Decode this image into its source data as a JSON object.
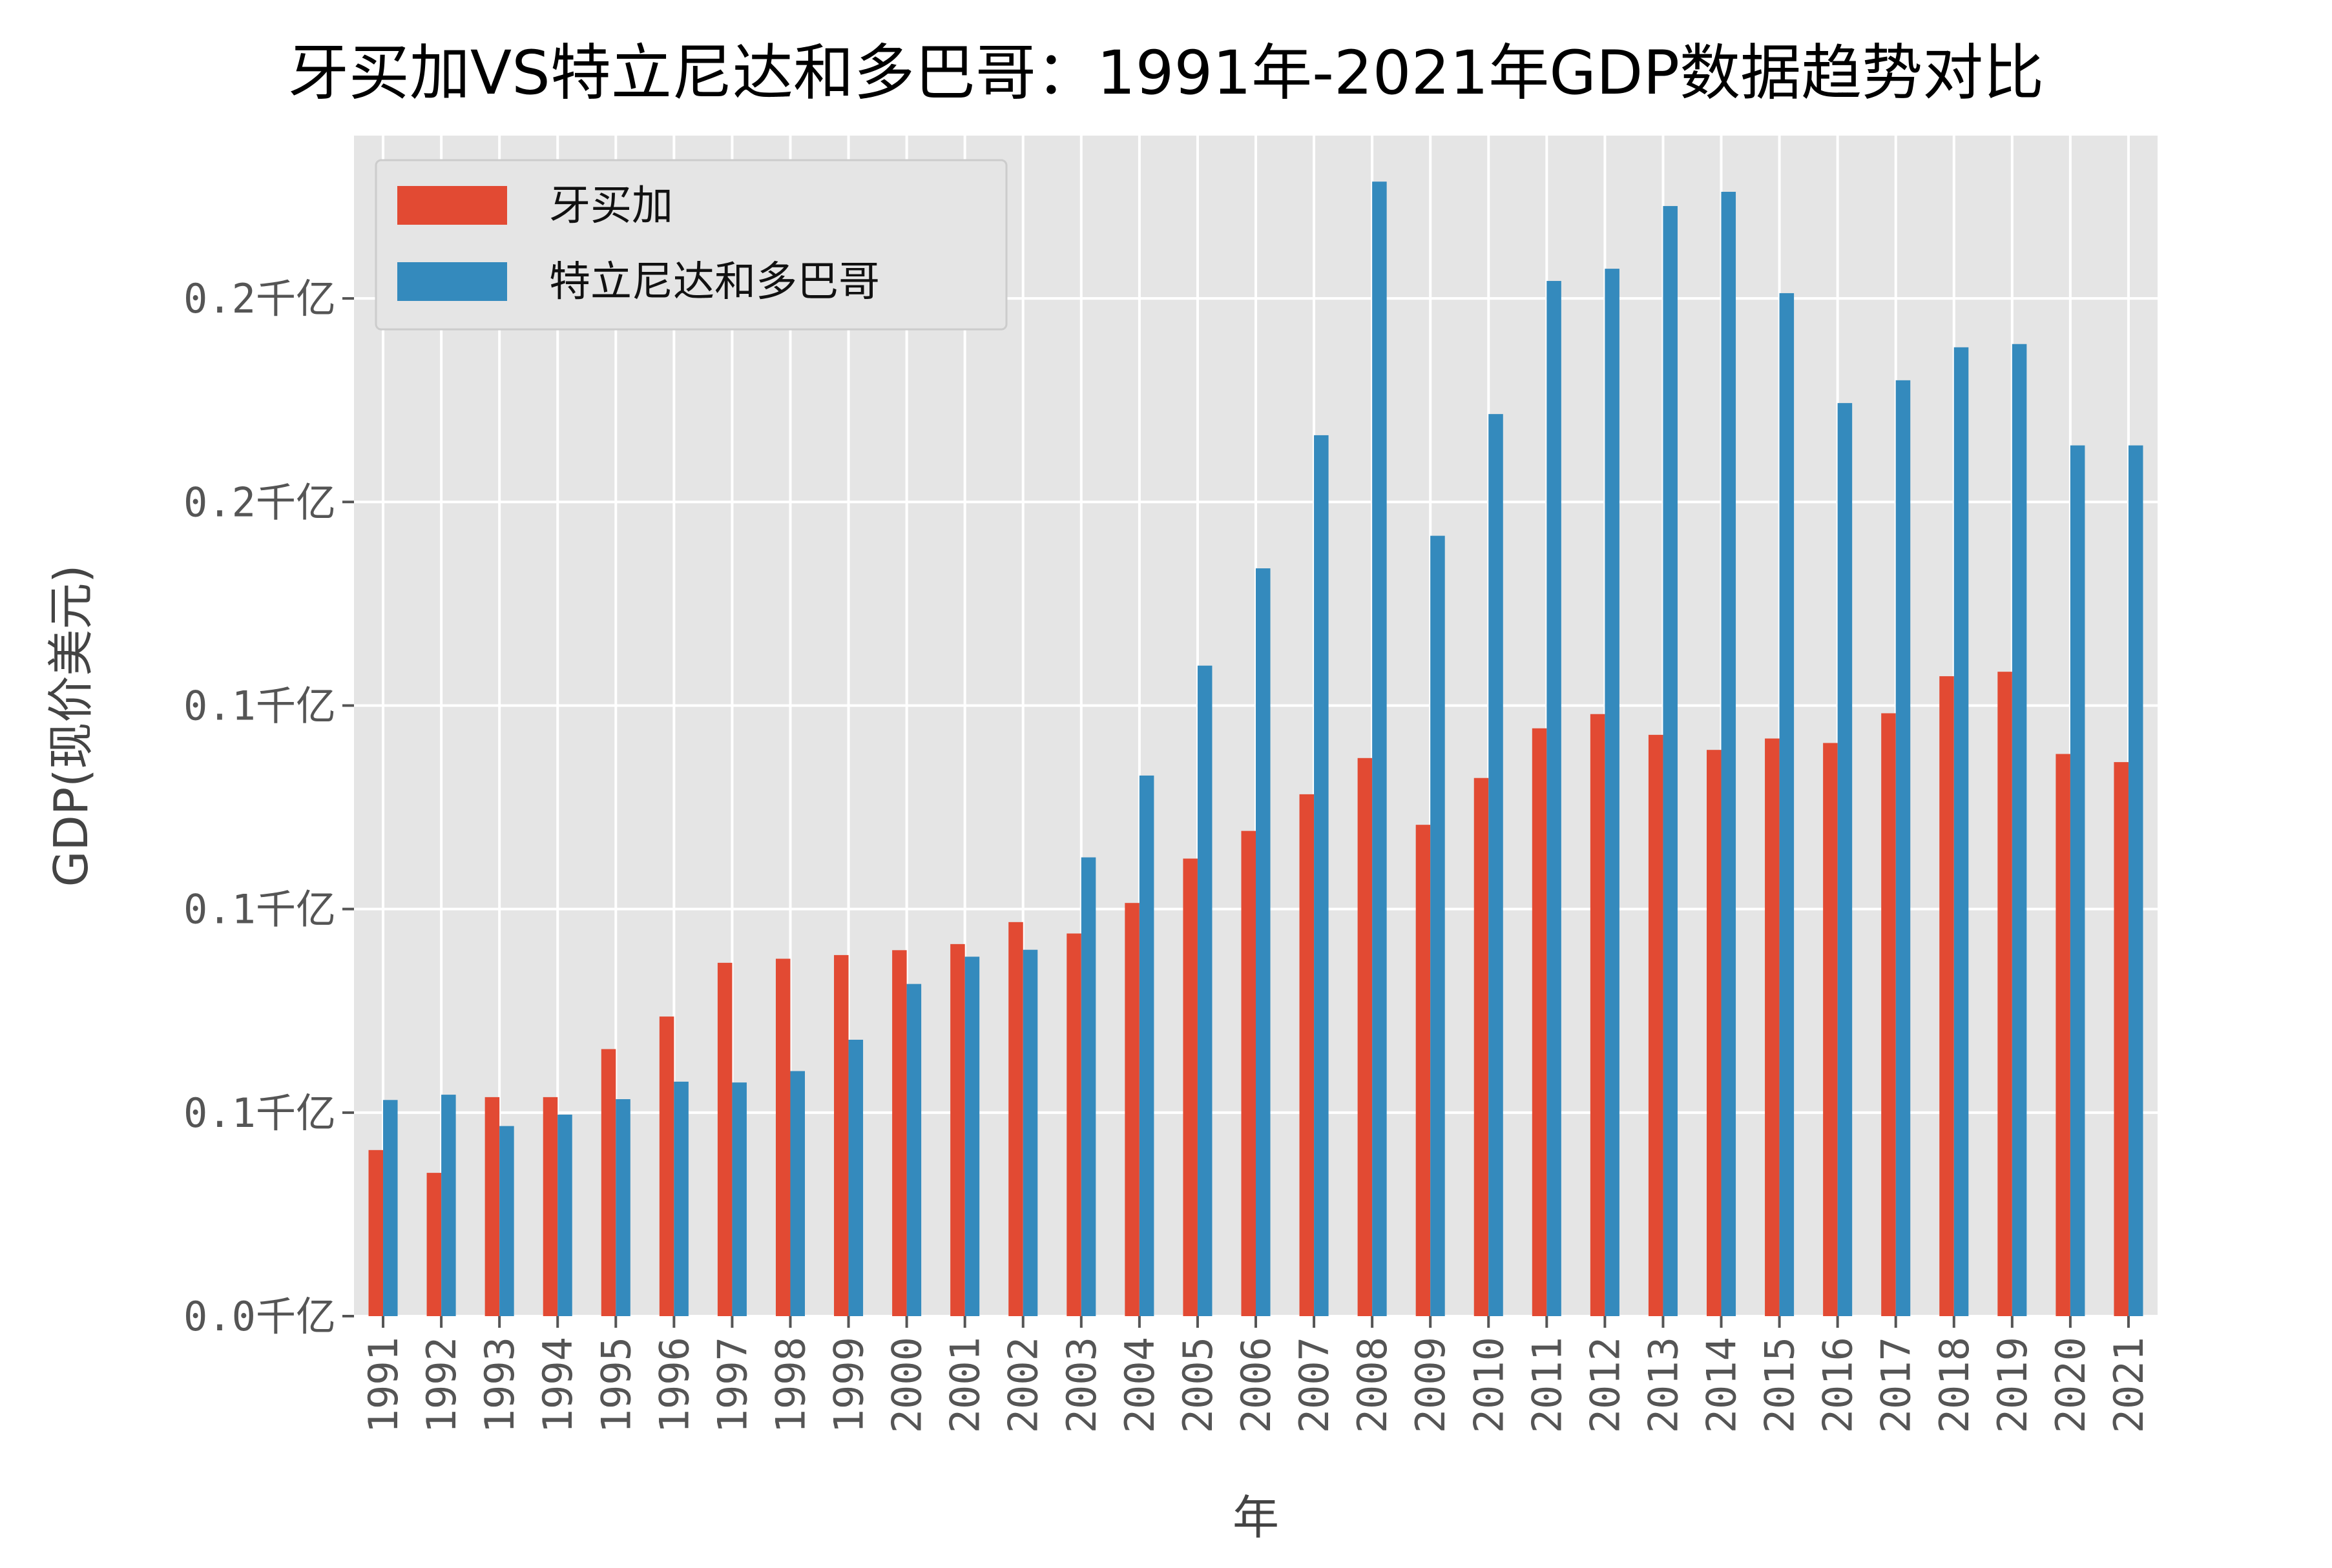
{
  "chart_data": {
    "type": "bar",
    "title": "牙买加VS特立尼达和多巴哥：1991年-2021年GDP数据趋势对比",
    "xlabel": "年",
    "ylabel": "GDP(现价美元)",
    "categories": [
      "1991",
      "1992",
      "1993",
      "1994",
      "1995",
      "1996",
      "1997",
      "1998",
      "1999",
      "2000",
      "2001",
      "2002",
      "2003",
      "2004",
      "2005",
      "2006",
      "2007",
      "2008",
      "2009",
      "2010",
      "2011",
      "2012",
      "2013",
      "2014",
      "2015",
      "2016",
      "2017",
      "2018",
      "2019",
      "2020",
      "2021"
    ],
    "ylim": [
      0,
      29
    ],
    "ytick_values": [
      0,
      5,
      10,
      15,
      20,
      25
    ],
    "ytick_labels": [
      "0.0千亿",
      "0.1千亿",
      "0.1千亿",
      "0.1千亿",
      "0.2千亿",
      "0.2千亿"
    ],
    "grid": true,
    "legend_position": "top-left",
    "series": [
      {
        "name": "牙买加",
        "color": "#E24A33",
        "values": [
          4.08,
          3.52,
          5.38,
          5.38,
          6.56,
          7.36,
          8.68,
          8.78,
          8.87,
          8.99,
          9.14,
          9.68,
          9.4,
          10.15,
          11.24,
          11.92,
          12.82,
          13.71,
          12.07,
          13.22,
          14.44,
          14.79,
          14.28,
          13.91,
          14.19,
          14.08,
          14.81,
          15.72,
          15.83,
          13.81,
          13.61
        ]
      },
      {
        "name": "特立尼达和多巴哥",
        "color": "#348ABD",
        "values": [
          5.31,
          5.44,
          4.67,
          4.95,
          5.33,
          5.76,
          5.74,
          6.02,
          6.79,
          8.16,
          8.83,
          9.0,
          11.27,
          13.28,
          15.98,
          18.37,
          21.64,
          27.87,
          19.17,
          22.16,
          25.43,
          25.73,
          27.27,
          27.62,
          25.13,
          22.43,
          22.99,
          23.8,
          23.88,
          21.39,
          21.39
        ]
      }
    ]
  }
}
